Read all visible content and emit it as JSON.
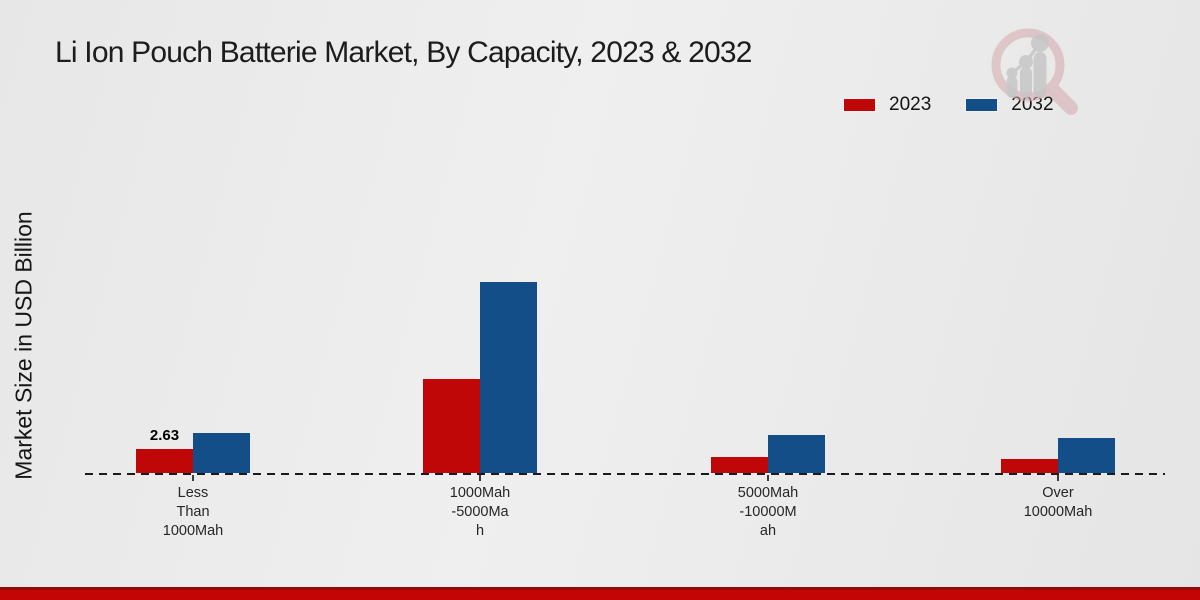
{
  "title": "Li Ion Pouch Batterie Market, By Capacity, 2023 & 2032",
  "y_axis_label": "Market Size in USD Billion",
  "legend": {
    "position": "top-right",
    "items": [
      {
        "label": "2023",
        "color": "#c00707"
      },
      {
        "label": "2032",
        "color": "#134e88"
      }
    ]
  },
  "colors": {
    "series_2023": "#c00707",
    "series_2032": "#134e88",
    "footer_stripe": "#c30505",
    "footer_stripe_top": "#970808",
    "background": "#e9e9e9",
    "logo_ring": "#d9b9bc",
    "logo_grey": "#c6c6c8"
  },
  "logo": {
    "name": "market-research-magnifier-bar-chart-logo"
  },
  "chart_data": {
    "type": "bar",
    "title": "Li Ion Pouch Batterie Market, By Capacity, 2023 & 2032",
    "xlabel": "",
    "ylabel": "Market Size in USD Billion",
    "ylim": [
      0,
      22
    ],
    "grid": false,
    "baseline_style": "dashed",
    "legend_position": "top-right",
    "categories": [
      "Less Than 1000Mah",
      "1000Mah-5000Mah",
      "5000Mah-10000Mah",
      "Over 10000Mah"
    ],
    "category_label_lines": [
      "Less\nThan\n1000Mah",
      "1000Mah\n-5000Ma\nh",
      "5000Mah\n-10000M\nah",
      "Over\n10000Mah"
    ],
    "series": [
      {
        "name": "2023",
        "color": "#c00707",
        "values": [
          2.63,
          10.2,
          1.7,
          1.5
        ]
      },
      {
        "name": "2032",
        "color": "#134e88",
        "values": [
          4.4,
          20.8,
          4.1,
          3.8
        ]
      }
    ],
    "bar_labels": [
      {
        "series": "2023",
        "category_index": 0,
        "text": "2.63"
      }
    ]
  }
}
